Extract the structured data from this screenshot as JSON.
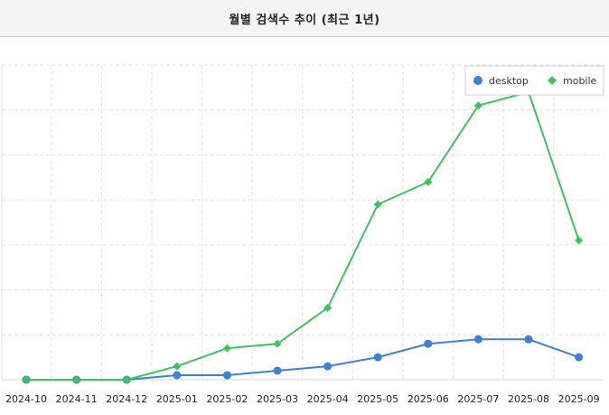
{
  "header": {
    "title": "월별 검색수 추이 (최근 1년)"
  },
  "chart_data": {
    "type": "line",
    "title": "월별 검색수 추이 (최근 1년)",
    "categories": [
      "2024-10",
      "2024-11",
      "2024-12",
      "2025-01",
      "2025-02",
      "2025-03",
      "2025-04",
      "2025-05",
      "2025-06",
      "2025-07",
      "2025-08",
      "2025-09"
    ],
    "ylim": [
      0,
      7
    ],
    "y_gridlines": [
      0,
      1,
      2,
      3,
      4,
      5,
      6,
      7
    ],
    "series": [
      {
        "name": "desktop",
        "color": "#3f7fd6",
        "marker": "circle",
        "values": [
          0,
          0,
          0,
          0.1,
          0.1,
          0.2,
          0.3,
          0.5,
          0.8,
          0.9,
          0.9,
          0.5
        ]
      },
      {
        "name": "mobile",
        "color": "#3cc45e",
        "marker": "diamond",
        "values": [
          0,
          0,
          0,
          0.3,
          0.7,
          0.8,
          1.6,
          3.9,
          4.4,
          6.1,
          6.4,
          3.1
        ]
      }
    ],
    "grid": true,
    "legend_position": "top-right"
  }
}
